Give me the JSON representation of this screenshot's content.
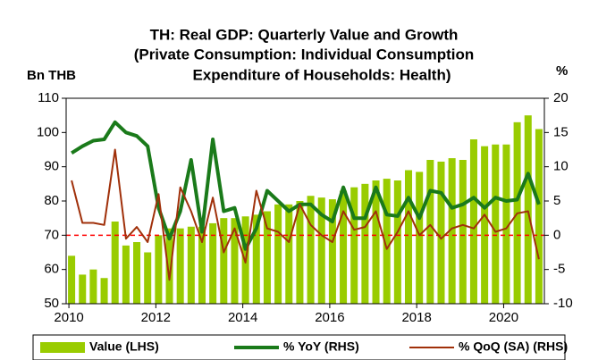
{
  "chart_data": {
    "type": "bar-line",
    "title": [
      "TH: Real GDP: Quarterly Value and Growth",
      "(Private Consumption: Individual Consumption",
      "Expenditure of Households: Health)"
    ],
    "ylabel": "Bn THB",
    "y2label": "%",
    "categories": [
      "2010",
      null,
      null,
      null,
      null,
      null,
      null,
      null,
      "2012",
      null,
      null,
      null,
      null,
      null,
      null,
      null,
      "2014",
      null,
      null,
      null,
      null,
      null,
      null,
      null,
      "2016",
      null,
      null,
      null,
      null,
      null,
      null,
      null,
      "2018",
      null,
      null,
      null,
      null,
      null,
      null,
      null,
      "2020",
      null,
      null,
      null
    ],
    "series": [
      {
        "name": "Value (LHS)",
        "kind": "bar",
        "axis": "y",
        "color": "#99cc00",
        "values": [
          64,
          58.5,
          60,
          57.5,
          74,
          67,
          68,
          65,
          70,
          72,
          72,
          72.5,
          72.5,
          73.5,
          75,
          75,
          75.5,
          76,
          77,
          79,
          79,
          80,
          81.5,
          81,
          80.5,
          83,
          84,
          85,
          86,
          86.5,
          86,
          89,
          88.5,
          92,
          91.5,
          92.5,
          92,
          98,
          96,
          96.5,
          96.5,
          103,
          105,
          101
        ]
      },
      {
        "name": "% YoY (RHS)",
        "kind": "line",
        "axis": "y2",
        "color": "#1a7a1a",
        "width": 4,
        "values": [
          12,
          13,
          13.8,
          14,
          16.5,
          15,
          14.5,
          13,
          4,
          -0.5,
          3.5,
          11,
          0.5,
          14,
          3.5,
          4,
          -2,
          1,
          6.5,
          5,
          3.5,
          4.5,
          4.5,
          3,
          2,
          7,
          2.5,
          2.5,
          7,
          3,
          2.8,
          5.5,
          2.5,
          6.5,
          6.2,
          4,
          4.5,
          5.5,
          4,
          5.5,
          5,
          5.2,
          9,
          4.5
        ]
      },
      {
        "name": "% QoQ (SA) (RHS)",
        "kind": "line",
        "axis": "y2",
        "color": "#a0300a",
        "width": 2,
        "values": [
          8,
          1.8,
          1.8,
          1.5,
          12.5,
          -0.5,
          1.2,
          -1,
          6,
          -6.5,
          7,
          3.5,
          -1,
          5.5,
          -2.5,
          1,
          -4,
          6.5,
          1,
          0.5,
          -1,
          4.5,
          1.5,
          0,
          -1,
          3.5,
          0.8,
          1.2,
          3.5,
          -2,
          0.5,
          3.5,
          0,
          1.5,
          -0.5,
          1,
          1.5,
          1,
          3,
          0.5,
          1,
          3.2,
          3.5,
          -3.5
        ]
      }
    ],
    "ylim": [
      50,
      110
    ],
    "yticks": [
      50,
      60,
      70,
      80,
      90,
      100,
      110
    ],
    "y2lim": [
      -10,
      20
    ],
    "y2ticks": [
      -10,
      -5,
      0,
      5,
      10,
      15,
      20
    ],
    "reference_line": {
      "axis": "y2",
      "value": 0,
      "color": "#ff0000"
    },
    "grid": false,
    "legend": "bottom"
  }
}
